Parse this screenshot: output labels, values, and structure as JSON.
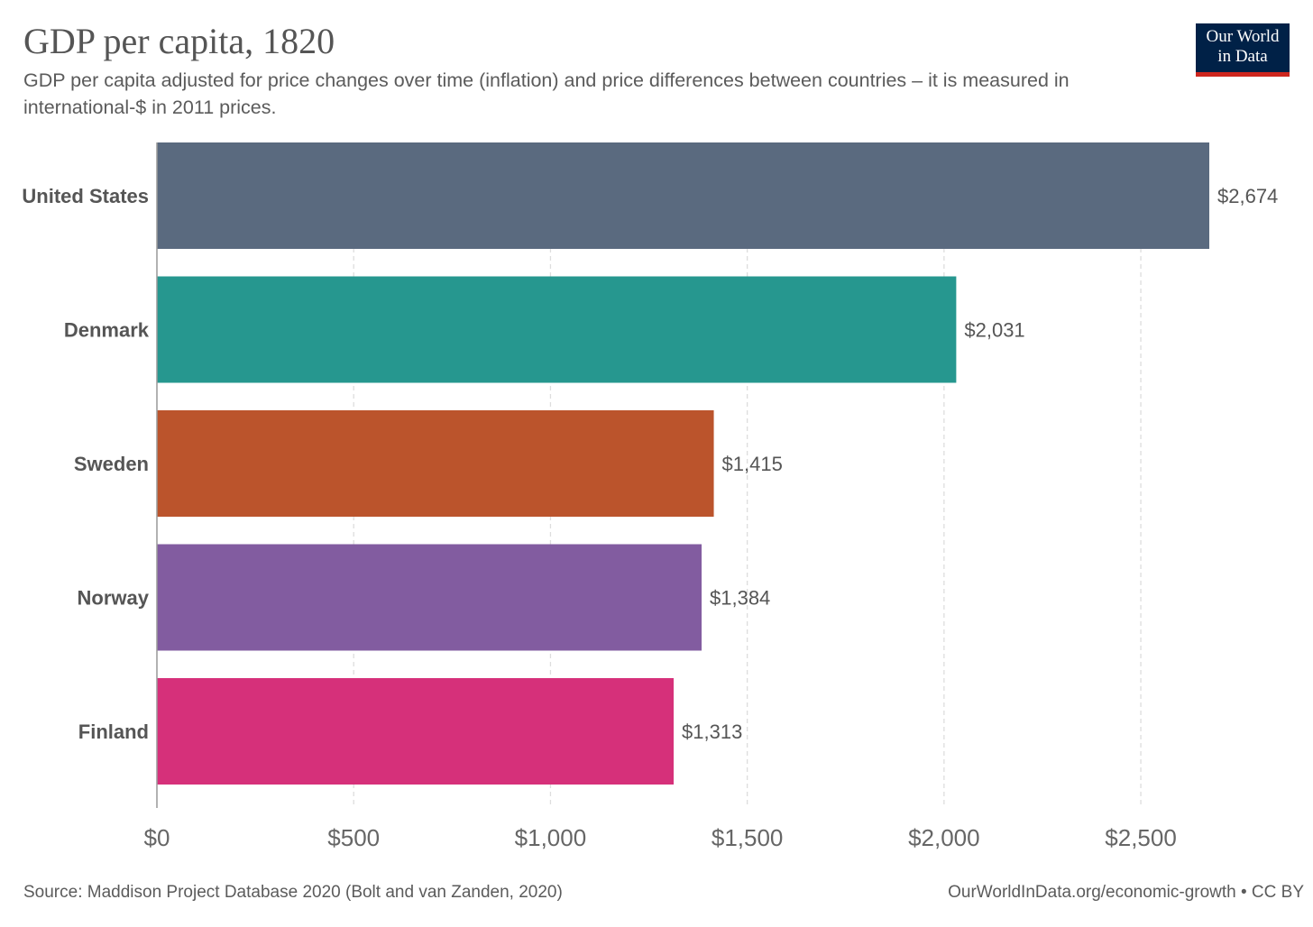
{
  "header": {
    "title": "GDP per capita, 1820",
    "subtitle": "GDP per capita adjusted for price changes over time (inflation) and price differences between countries – it is measured in international-$ in 2011 prices.",
    "logo_line1": "Our World",
    "logo_line2": "in Data"
  },
  "footer": {
    "source": "Source: Maddison Project Database 2020 (Bolt and van Zanden, 2020)",
    "credit": "OurWorldInData.org/economic-growth • CC BY"
  },
  "colors": {
    "logo_background": "#002147",
    "logo_accent": "#ce261e",
    "gridline": "#dddddd",
    "axis": "#999999",
    "label_text": "#555555"
  },
  "chart_data": {
    "type": "bar",
    "orientation": "horizontal",
    "categories": [
      "United States",
      "Denmark",
      "Sweden",
      "Norway",
      "Finland"
    ],
    "values": [
      2674,
      2031,
      1415,
      1384,
      1313
    ],
    "value_labels": [
      "$2,674",
      "$2,031",
      "$1,415",
      "$1,384",
      "$1,313"
    ],
    "bar_colors": [
      "#5a6a7f",
      "#26978f",
      "#bb542c",
      "#825ca0",
      "#d6307a"
    ],
    "xlim": [
      0,
      2674
    ],
    "xticks": [
      0,
      500,
      1000,
      1500,
      2000,
      2500
    ],
    "xtick_labels": [
      "$0",
      "$500",
      "$1,000",
      "$1,500",
      "$2,000",
      "$2,500"
    ],
    "grid": "vertical dashed",
    "legend": "none"
  }
}
